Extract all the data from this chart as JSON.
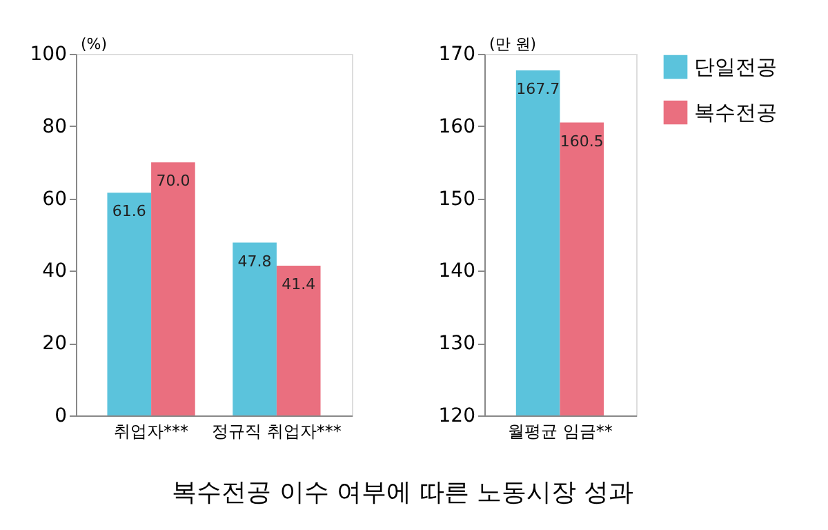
{
  "chart_data": [
    {
      "type": "bar",
      "title": "복수전공 이수 여부에 따른 노동시장 성과",
      "ylabel": "(%)",
      "categories": [
        "취업자***",
        "정규직 취업자***"
      ],
      "ylim": [
        0,
        100
      ],
      "yticks": [
        0,
        20,
        40,
        60,
        80,
        100
      ],
      "grid": false,
      "legend": "top right",
      "series": [
        {
          "name": "단일전공",
          "color": "#5bc3dc",
          "values": [
            61.6,
            47.8
          ],
          "value_labels": [
            "61.6",
            "47.8"
          ]
        },
        {
          "name": "복수전공",
          "color": "#ea6f7f",
          "values": [
            70.0,
            41.4
          ],
          "value_labels": [
            "70.0",
            "41.4"
          ]
        }
      ]
    },
    {
      "type": "bar",
      "ylabel": "(만 원)",
      "categories": [
        "월평균 임금**"
      ],
      "ylim": [
        120,
        170
      ],
      "yticks": [
        120,
        130,
        140,
        150,
        160,
        170
      ],
      "grid": false,
      "series": [
        {
          "color": "#5bc3dc",
          "values": [
            167.7
          ],
          "value_labels": [
            "167.7"
          ]
        },
        {
          "color": "#ea6f7f",
          "values": [
            160.5
          ],
          "value_labels": [
            "160.5"
          ]
        }
      ]
    }
  ]
}
